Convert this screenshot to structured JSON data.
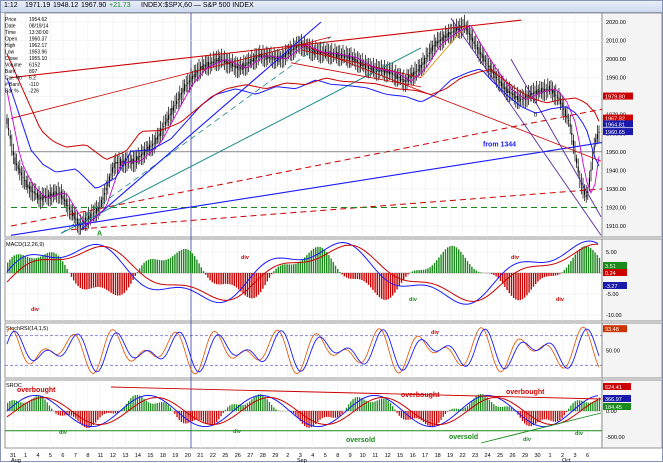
{
  "window": {
    "interval_label": "1:12",
    "symbol_title": "INDEX:$SPX,60 — S&P 500 INDEX",
    "quote_values": [
      "1971.19",
      "1948.12",
      "1967.90",
      "+21.73"
    ]
  },
  "info_panel": {
    "labels": [
      "Price",
      "Date",
      "Time",
      "Open",
      "High",
      "Low",
      "Close",
      "Volume",
      "Bar#",
      "Car. No",
      "# Bars",
      "Bar %"
    ],
    "values": [
      "1954.62",
      "08/19/14",
      "13:30:00",
      "1960.37",
      "1962.17",
      "1953.96",
      "1955.10",
      "6152",
      "897",
      "6.2",
      "-110",
      "-226"
    ]
  },
  "price_panel": {
    "y_ticks": [
      "2020.00",
      "2010.00",
      "2000.00",
      "1990.00",
      "1980.00",
      "1970.00",
      "1960.00",
      "1950.00",
      "1940.00",
      "1930.00",
      "1920.00",
      "1910.00"
    ],
    "tags": [
      {
        "text": "1979.80",
        "color": "#cc0000"
      },
      {
        "text": "1967.92",
        "color": "#cc0000"
      },
      {
        "text": "1964.81",
        "color": "#1a1aaa"
      },
      {
        "text": "1960.65",
        "color": "#1a1aaa"
      }
    ],
    "annotations": {
      "from_label": "from 1344",
      "wave_a": "A",
      "wave_b": "b"
    }
  },
  "macd_panel": {
    "title": "MACD(12,26,9)",
    "y_ticks": [
      "5.00",
      "0.00",
      "-5.00",
      "-10.00"
    ],
    "tags": [
      {
        "text": "3.51",
        "color": "#1a8a1a"
      },
      {
        "text": "0.24",
        "color": "#cc0000"
      },
      {
        "text": "-3.27",
        "color": "#1a1aaa"
      }
    ],
    "labels": [
      "div",
      "div",
      "div",
      "div",
      "div"
    ]
  },
  "stoch_panel": {
    "title": "StochRSI(14,1,5)",
    "y_ticks": [
      "50.00"
    ],
    "tags": [
      {
        "text": "93.48",
        "color": "#cc3300"
      }
    ],
    "labels": [
      "div"
    ]
  },
  "sroc_panel": {
    "title": "SROC",
    "y_ticks": [
      "0.00",
      "-500.00"
    ],
    "tags": [
      {
        "text": "624.41",
        "color": "#cc0000"
      },
      {
        "text": "366.97",
        "color": "#1a1aaa"
      },
      {
        "text": "184.45",
        "color": "#1a8a1a"
      }
    ],
    "overbought": "overbought",
    "oversold": "oversold",
    "labels": [
      "div",
      "div",
      "div",
      "div"
    ]
  },
  "x_axis": {
    "labels": [
      "31",
      "1",
      "4",
      "5",
      "6",
      "7",
      "8",
      "11",
      "12",
      "13",
      "14",
      "15",
      "18",
      "19",
      "20",
      "21",
      "22",
      "25",
      "26",
      "27",
      "28",
      "29",
      "2",
      "3",
      "4",
      "5",
      "8",
      "9",
      "10",
      "11",
      "12",
      "15",
      "16",
      "17",
      "18",
      "19",
      "22",
      "23",
      "24",
      "25",
      "26",
      "29",
      "30",
      "1",
      "2",
      "3",
      "6"
    ],
    "months": [
      "Aug",
      "Sep",
      "Oct"
    ]
  },
  "colors": {
    "candle": "#000000",
    "red_line": "#cc0000",
    "blue_line": "#1a1aff",
    "green_line": "#1a8a1a",
    "magenta": "#cc00cc",
    "teal": "#1a8a8a",
    "orange": "#e08000",
    "purple": "#5a2a9a"
  }
}
